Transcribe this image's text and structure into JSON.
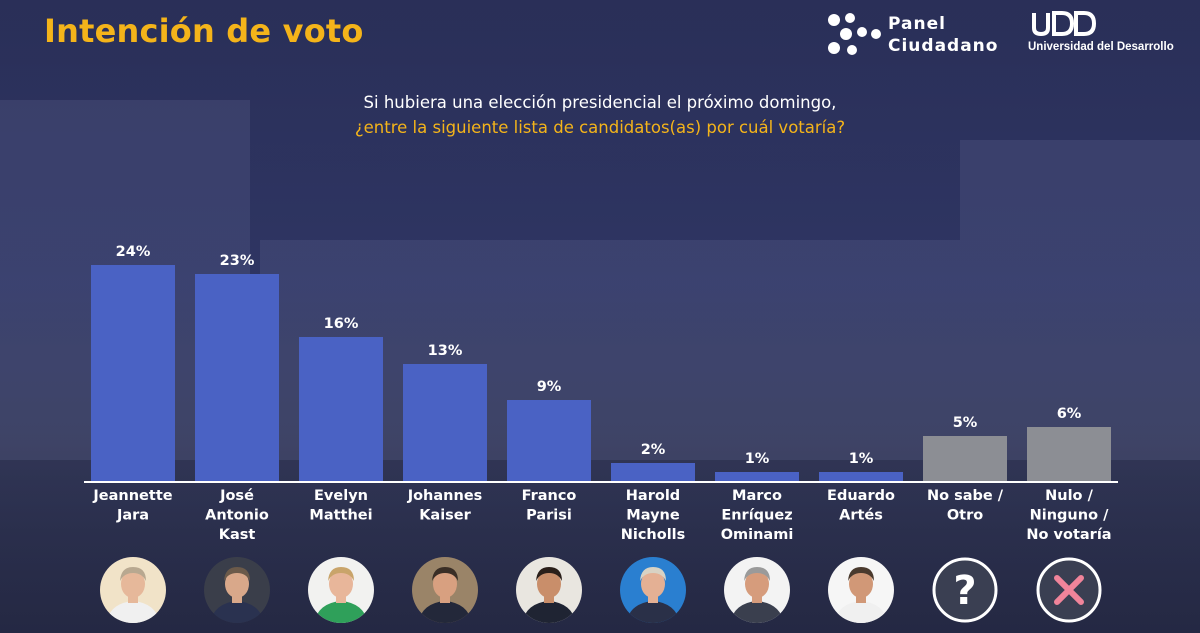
{
  "header": {
    "title": "Intención de voto",
    "question_line1": "Si hubiera una elección presidencial el próximo domingo,",
    "question_line2": "¿entre la siguiente lista de candidatos(as) por cuál votaría?"
  },
  "logos": {
    "panel_line1": "Panel",
    "panel_line2": "Ciudadano",
    "udd_mark": "UDD",
    "udd_name": "Universidad del Desarrollo"
  },
  "colors": {
    "accent": "#f4b41a",
    "candidate_bar": "#4a62c4",
    "other_bar": "#8c8e94",
    "text": "#ffffff"
  },
  "chart_data": {
    "type": "bar",
    "categories": [
      [
        "Jeannette",
        "Jara"
      ],
      [
        "José",
        "Antonio",
        "Kast"
      ],
      [
        "Evelyn",
        "Matthei"
      ],
      [
        "Johannes",
        "Kaiser"
      ],
      [
        "Franco",
        "Parisi"
      ],
      [
        "Harold",
        "Mayne",
        "Nicholls"
      ],
      [
        "Marco",
        "Enríquez",
        "Ominami"
      ],
      [
        "Eduardo",
        "Artés"
      ],
      [
        "No sabe /",
        "Otro"
      ],
      [
        "Nulo /",
        "Ninguno /",
        "No votaría"
      ]
    ],
    "values": [
      24,
      23,
      16,
      13,
      9,
      2,
      1,
      1,
      5,
      6
    ],
    "value_labels": [
      "24%",
      "23%",
      "16%",
      "13%",
      "9%",
      "2%",
      "1%",
      "1%",
      "5%",
      "6%"
    ],
    "bar_kind": [
      "candidate",
      "candidate",
      "candidate",
      "candidate",
      "candidate",
      "candidate",
      "candidate",
      "candidate",
      "other",
      "other"
    ],
    "ylim": [
      0,
      24
    ],
    "grid": false,
    "legend": "none"
  },
  "avatars": [
    {
      "icon": "portrait-icon",
      "bg": "#f1e3c8",
      "skin": "#e6b89a",
      "hair": "#b8a890",
      "shirt": "#f0f0f0"
    },
    {
      "icon": "portrait-icon",
      "bg": "#3a3e4a",
      "skin": "#d9a88a",
      "hair": "#6b5a4a",
      "shirt": "#2a3250"
    },
    {
      "icon": "portrait-icon",
      "bg": "#f2f2f0",
      "skin": "#e8b69a",
      "hair": "#c9a46a",
      "shirt": "#2fa05a"
    },
    {
      "icon": "portrait-icon",
      "bg": "#9a8468",
      "skin": "#d8a080",
      "hair": "#3a2e26",
      "shirt": "#23283a"
    },
    {
      "icon": "portrait-icon",
      "bg": "#e9e6e0",
      "skin": "#c98e6a",
      "hair": "#2a1f1a",
      "shirt": "#1f2433"
    },
    {
      "icon": "portrait-icon",
      "bg": "#2a7fd0",
      "skin": "#e4b094",
      "hair": "#d8d2c4",
      "shirt": "#2a3048"
    },
    {
      "icon": "portrait-icon",
      "bg": "#f3f3f3",
      "skin": "#d69c7c",
      "hair": "#9a9a9a",
      "shirt": "#3a3f4e"
    },
    {
      "icon": "portrait-icon",
      "bg": "#f6f6f6",
      "skin": "#d19877",
      "hair": "#4a3a2e",
      "shirt": "#f0f0f0"
    },
    {
      "icon": "question-mark-icon",
      "bg": "#3a3f52",
      "symbol": "?"
    },
    {
      "icon": "cross-mark-icon",
      "bg": "#3a3f52",
      "symbol": "x"
    }
  ]
}
